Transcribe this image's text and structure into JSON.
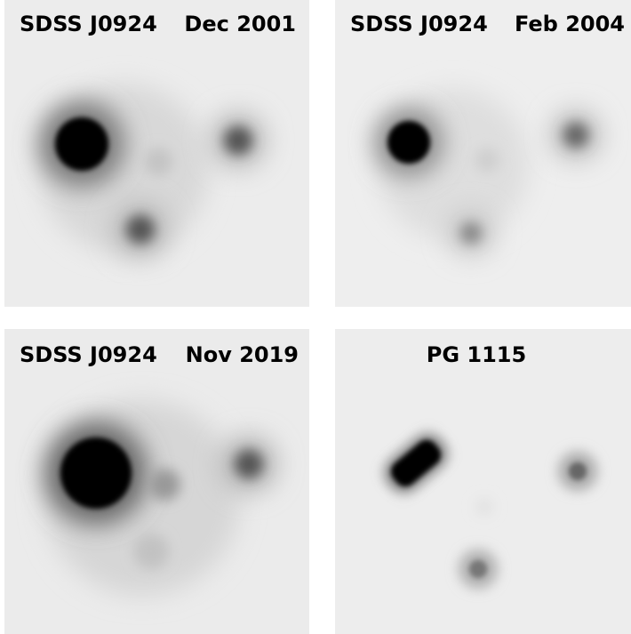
{
  "panels": [
    {
      "title": "SDSS J0924",
      "date": "Dec 2001"
    },
    {
      "title": "SDSS J0924",
      "date": "Feb 2004"
    },
    {
      "title": "SDSS J0924",
      "date": "Nov 2019"
    },
    {
      "title": "PG 1115"
    }
  ]
}
